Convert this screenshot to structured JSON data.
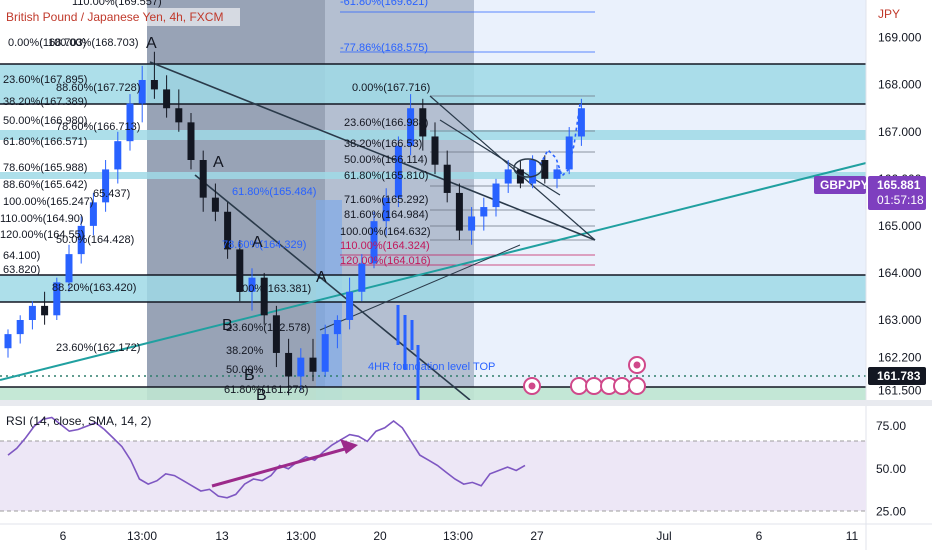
{
  "header": {
    "title": "British Pound / Japanese Yen, 4h, FXCM",
    "currency": "JPY"
  },
  "price_axis": {
    "ticks": [
      "169.000",
      "168.000",
      "167.000",
      "166.000",
      "165.000",
      "164.000",
      "163.000",
      "162.200",
      "161.500"
    ],
    "ticks_values": [
      169.0,
      168.0,
      167.0,
      166.0,
      165.0,
      164.0,
      163.0,
      162.2,
      161.5
    ]
  },
  "time_axis": {
    "labels": [
      "6",
      "13:00",
      "13",
      "13:00",
      "20",
      "13:00",
      "27",
      "Jul",
      "6",
      "11"
    ]
  },
  "symbol_tag": {
    "symbol": "GBPJPY",
    "price": "165.881",
    "countdown": "01:57:18"
  },
  "price_tag_low": "161.783",
  "fib_labels": [
    {
      "text": "110.00%(169.557)",
      "color": "dark"
    },
    {
      "text": "0.00%(168.703)",
      "color": "dark"
    },
    {
      "text": "100.00%(168.703)",
      "color": "dark"
    },
    {
      "text": "23.60%(167.895)",
      "color": "dark"
    },
    {
      "text": "88.60%(167.728)",
      "color": "dark"
    },
    {
      "text": "38.20%(167.389)",
      "color": "dark"
    },
    {
      "text": "50.00%(166.980)",
      "color": "dark"
    },
    {
      "text": "78.60%(166.713)",
      "color": "dark"
    },
    {
      "text": "61.80%(166.571)",
      "color": "dark"
    },
    {
      "text": "78.60%(165.988)",
      "color": "dark"
    },
    {
      "text": "88.60%(165.642)",
      "color": "dark"
    },
    {
      "text": "100.00%(165.247)",
      "color": "dark"
    },
    {
      "text": "110.00%(164.90)",
      "color": "dark"
    },
    {
      "text": "120.00%(164.55)",
      "color": "dark"
    },
    {
      "text": "64.100)",
      "color": "dark"
    },
    {
      "text": "63.820)",
      "color": "dark"
    },
    {
      "text": "23.60%(162.172)",
      "color": "dark"
    },
    {
      "text": "61.80%(165.484)",
      "color": "blue"
    },
    {
      "text": "65.437)",
      "color": "dark"
    },
    {
      "text": "50.0%(164.428)",
      "color": "dark"
    },
    {
      "text": "78.60%(164.329)",
      "color": "blue"
    },
    {
      "text": "88.20%(163.420)",
      "color": "dark"
    },
    {
      "text": "100%(163.381)",
      "color": "dark"
    },
    {
      "text": "23.60%(162.578)",
      "color": "dark"
    },
    {
      "text": "38.20%",
      "color": "dark"
    },
    {
      "text": "50.00%",
      "color": "dark"
    },
    {
      "text": "61.80%(161.278)",
      "color": "dark"
    },
    {
      "text": "-61.80%(169.621)",
      "color": "blue"
    },
    {
      "text": "-77.86%(168.575)",
      "color": "blue"
    },
    {
      "text": "0.00%(167.716)",
      "color": "dark"
    },
    {
      "text": "23.60%(166.988)",
      "color": "dark"
    },
    {
      "text": "38.20%(166.53)",
      "color": "dark"
    },
    {
      "text": "50.00%(166.114)",
      "color": "dark"
    },
    {
      "text": "61.80%(165.810)",
      "color": "dark"
    },
    {
      "text": "71.60%(165.292)",
      "color": "dark"
    },
    {
      "text": "81.60%(164.984)",
      "color": "dark"
    },
    {
      "text": "100.00%(164.632)",
      "color": "dark"
    },
    {
      "text": "110.00%(164.324)",
      "color": "red"
    },
    {
      "text": "120.00%(164.016)",
      "color": "red"
    }
  ],
  "wave_labels": [
    "A",
    "A",
    "A",
    "A",
    "B",
    "B",
    "B"
  ],
  "annotation": "4HR foundation level TOP",
  "rsi_panel": {
    "title": "RSI (14, close, SMA, 14, 2)",
    "ticks": [
      "75.00",
      "50.00",
      "25.00"
    ],
    "ticks_values": [
      75,
      50,
      25
    ]
  },
  "colors": {
    "bull": "#2962ff",
    "bear": "#131722",
    "tag_purple": "#7e3fbf",
    "zone_teal": "#9fd9e6",
    "zone_blue": "#c9dcf5",
    "zone_gray": "#8893a6",
    "trend_teal": "#20a0a0",
    "rsi_line": "#7e57c2",
    "rsi_arrow": "#9c2a8a"
  },
  "chart_data": [
    {
      "type": "candlestick",
      "title": "British Pound / Japanese Yen, 4h, FXCM",
      "ylabel": "JPY",
      "ylim": [
        161.3,
        169.8
      ],
      "x": [
        "6",
        "13:00",
        "13",
        "13:00",
        "20",
        "13:00",
        "27",
        "Jul",
        "6",
        "11"
      ],
      "series": [
        {
          "values": [
            [
              162.4,
              162.8,
              162.2,
              162.7
            ],
            [
              162.7,
              163.1,
              162.5,
              163.0
            ],
            [
              163.0,
              163.4,
              162.8,
              163.3
            ],
            [
              163.3,
              163.6,
              162.9,
              163.1
            ],
            [
              163.1,
              163.9,
              163.0,
              163.8
            ],
            [
              163.8,
              164.6,
              163.6,
              164.4
            ],
            [
              164.4,
              165.2,
              164.2,
              165.0
            ],
            [
              165.0,
              165.7,
              164.8,
              165.5
            ],
            [
              165.5,
              166.4,
              165.3,
              166.2
            ],
            [
              166.2,
              167.0,
              165.9,
              166.8
            ],
            [
              166.8,
              167.8,
              166.6,
              167.6
            ],
            [
              167.6,
              168.4,
              167.2,
              168.1
            ],
            [
              168.1,
              168.7,
              167.7,
              167.9
            ],
            [
              167.9,
              168.2,
              167.3,
              167.5
            ],
            [
              167.5,
              167.9,
              167.0,
              167.2
            ],
            [
              167.2,
              167.4,
              166.2,
              166.4
            ],
            [
              166.4,
              166.6,
              165.3,
              165.6
            ],
            [
              165.6,
              165.9,
              165.1,
              165.3
            ],
            [
              165.3,
              165.5,
              164.3,
              164.5
            ],
            [
              164.5,
              164.7,
              163.4,
              163.6
            ],
            [
              163.6,
              164.1,
              163.2,
              163.9
            ],
            [
              163.9,
              164.0,
              162.9,
              163.1
            ],
            [
              163.1,
              163.3,
              162.0,
              162.3
            ],
            [
              162.3,
              162.6,
              161.4,
              161.8
            ],
            [
              161.8,
              162.4,
              161.5,
              162.2
            ],
            [
              162.2,
              162.6,
              161.7,
              161.9
            ],
            [
              161.9,
              162.9,
              161.8,
              162.7
            ],
            [
              162.7,
              163.1,
              162.4,
              163.0
            ],
            [
              163.0,
              163.9,
              162.8,
              163.6
            ],
            [
              163.6,
              164.4,
              163.4,
              164.2
            ],
            [
              164.2,
              165.3,
              164.1,
              165.1
            ],
            [
              165.1,
              165.8,
              164.8,
              165.6
            ],
            [
              165.6,
              166.9,
              165.4,
              166.7
            ],
            [
              166.7,
              167.8,
              166.5,
              167.5
            ],
            [
              167.5,
              167.7,
              166.6,
              166.9
            ],
            [
              166.9,
              167.2,
              166.1,
              166.3
            ],
            [
              166.3,
              166.6,
              165.5,
              165.7
            ],
            [
              165.7,
              165.9,
              164.7,
              164.9
            ],
            [
              164.9,
              165.4,
              164.6,
              165.2
            ],
            [
              165.2,
              165.6,
              164.9,
              165.4
            ],
            [
              165.4,
              166.0,
              165.2,
              165.9
            ],
            [
              165.9,
              166.4,
              165.7,
              166.2
            ],
            [
              166.2,
              166.4,
              165.8,
              165.9
            ],
            [
              165.9,
              166.5,
              165.8,
              166.4
            ],
            [
              166.4,
              166.5,
              165.9,
              166.0
            ],
            [
              166.0,
              166.3,
              165.8,
              166.2
            ],
            [
              166.2,
              167.1,
              166.1,
              166.9
            ],
            [
              166.9,
              167.7,
              166.7,
              167.5
            ]
          ]
        }
      ]
    },
    {
      "type": "line",
      "title": "RSI (14, close, SMA, 14, 2)",
      "ylim": [
        20,
        85
      ],
      "series": [
        {
          "values": [
            58,
            62,
            68,
            75,
            79,
            80,
            76,
            72,
            73,
            75,
            77,
            73,
            68,
            63,
            55,
            44,
            41,
            43,
            47,
            46,
            43,
            40,
            37,
            38,
            34,
            33,
            35,
            41,
            44,
            43,
            46,
            52,
            50,
            54,
            57,
            55,
            60,
            64,
            67,
            70,
            69,
            66,
            72,
            74,
            78,
            74,
            66,
            58,
            55,
            52,
            48,
            44,
            41,
            42,
            40,
            47,
            49,
            51,
            49,
            52
          ]
        }
      ]
    }
  ]
}
